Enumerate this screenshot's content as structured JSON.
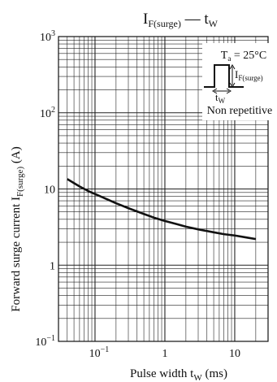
{
  "chart_data": {
    "type": "line",
    "title": {
      "main": "I",
      "main_sub": "F(surge)",
      "dash": " — ",
      "tail": "t",
      "tail_sub": "W"
    },
    "xlabel": {
      "text": "Pulse width  t",
      "sub": "W",
      "unit": "  (ms)"
    },
    "ylabel": {
      "text": "Forward surge current  I",
      "sub": "F(surge)",
      "unit": "  (A)"
    },
    "xscale": "log",
    "yscale": "log",
    "xlim": [
      0.03,
      30
    ],
    "ylim": [
      0.1,
      1000
    ],
    "grid": true,
    "x_ticks": [
      {
        "value": 0.1,
        "base": "10",
        "exp": "−1"
      },
      {
        "value": 1,
        "base": "1",
        "exp": ""
      },
      {
        "value": 10,
        "base": "10",
        "exp": ""
      }
    ],
    "y_ticks": [
      {
        "value": 1000,
        "base": "10",
        "exp": "3"
      },
      {
        "value": 100,
        "base": "10",
        "exp": "2"
      },
      {
        "value": 10,
        "base": "10",
        "exp": ""
      },
      {
        "value": 1,
        "base": "1",
        "exp": ""
      },
      {
        "value": 0.1,
        "base": "10",
        "exp": "−1"
      }
    ],
    "series": [
      {
        "x": [
          0.04,
          0.06,
          0.08,
          0.1,
          0.15,
          0.2,
          0.3,
          0.5,
          0.7,
          1,
          1.5,
          2,
          3,
          5,
          7,
          10,
          15,
          20
        ],
        "y": [
          13.5,
          10.8,
          9.4,
          8.6,
          7.3,
          6.5,
          5.6,
          4.7,
          4.2,
          3.8,
          3.45,
          3.2,
          2.95,
          2.7,
          2.55,
          2.45,
          2.3,
          2.2
        ]
      }
    ],
    "legend": {
      "position": "top-right",
      "condition": {
        "t": "T",
        "t_sub": "a",
        "rest": " = 25°C"
      },
      "pulse_label": {
        "text": "I",
        "sub": "F(surge)"
      },
      "width_label": {
        "text": "t",
        "sub": "W"
      },
      "note": "Non repetitive"
    },
    "colors": {
      "line": "#111111",
      "grid": "#222222",
      "background": "#ffffff"
    }
  }
}
